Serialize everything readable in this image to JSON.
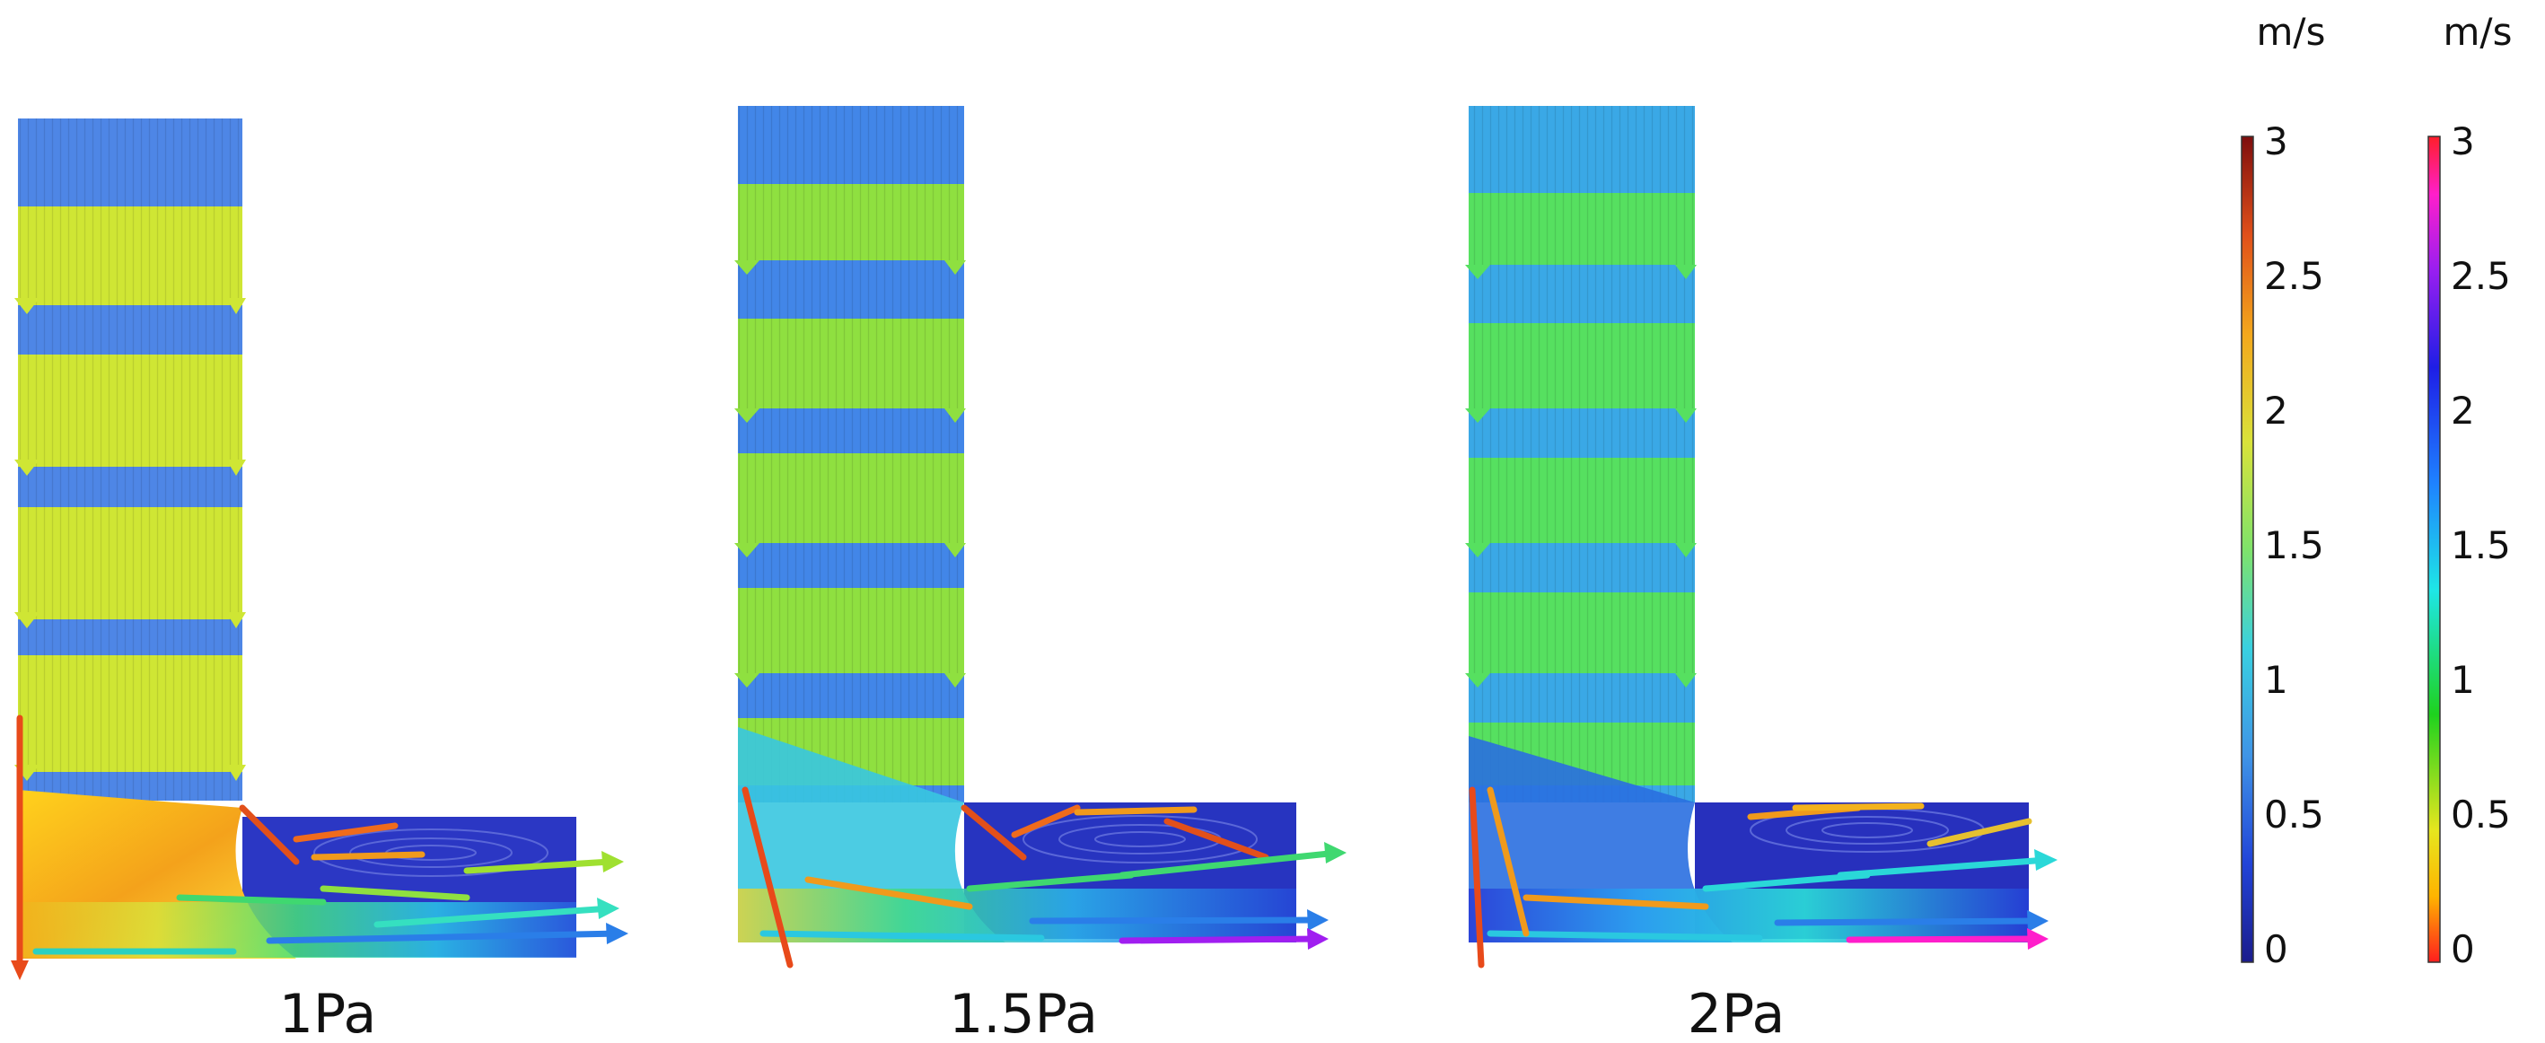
{
  "panels": [
    {
      "label": "1Pa"
    },
    {
      "label": "1.5Pa"
    },
    {
      "label": "2Pa"
    }
  ],
  "colorbars": [
    {
      "unit": "m/s",
      "ticks": [
        "3",
        "2.5",
        "2",
        "1.5",
        "1",
        "0.5",
        "0"
      ],
      "colormap": "jet",
      "colors": [
        "#1b1c8c",
        "#2244d8",
        "#3f94e6",
        "#39d0e0",
        "#7fe26a",
        "#d9e23a",
        "#f3a81d",
        "#e0501a",
        "#7e0d0d"
      ]
    },
    {
      "unit": "m/s",
      "ticks": [
        "3",
        "2.5",
        "2",
        "1.5",
        "1",
        "0.5",
        "0"
      ],
      "colormap": "rainbow",
      "colors": [
        "#ff1e1e",
        "#ffb400",
        "#e6e61e",
        "#1ed21e",
        "#1ee6e6",
        "#1e82ff",
        "#1e1ee6",
        "#9b1ef0",
        "#ff1ecb",
        "#ff1e2a"
      ]
    }
  ]
}
